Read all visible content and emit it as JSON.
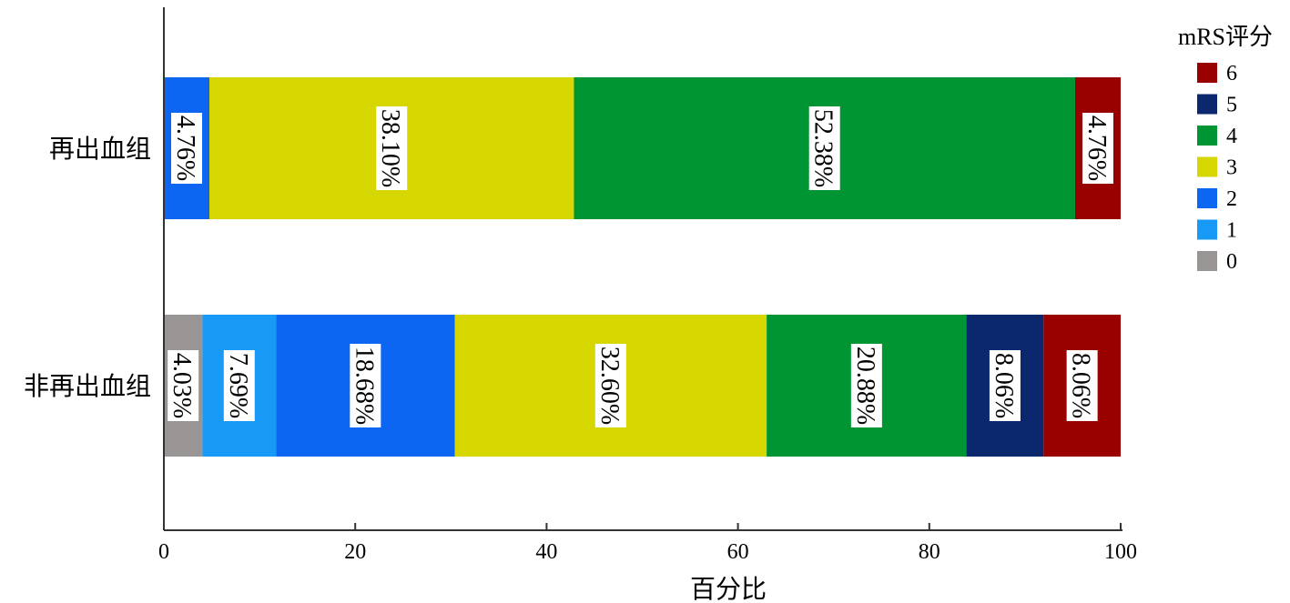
{
  "chart_data": {
    "type": "bar",
    "orientation": "horizontal",
    "stacked": true,
    "xlabel": "百分比",
    "xlim": [
      0,
      100
    ],
    "xticks": [
      0,
      20,
      40,
      60,
      80,
      100
    ],
    "categories": [
      "再出血组",
      "非再出血组"
    ],
    "legend": {
      "title": "mRS评分",
      "placement": "top-right",
      "order": [
        "6",
        "5",
        "4",
        "3",
        "2",
        "1",
        "0"
      ]
    },
    "series": [
      {
        "name": "0",
        "color": "#999594",
        "values": [
          0,
          4.03
        ],
        "labels": [
          "",
          "4.03%"
        ]
      },
      {
        "name": "1",
        "color": "#1799f5",
        "values": [
          0,
          7.69
        ],
        "labels": [
          "",
          "7.69%"
        ]
      },
      {
        "name": "2",
        "color": "#0d66f2",
        "values": [
          4.76,
          18.68
        ],
        "labels": [
          "4.76%",
          "18.68%"
        ]
      },
      {
        "name": "3",
        "color": "#d6d600",
        "values": [
          38.1,
          32.6
        ],
        "labels": [
          "38.10%",
          "32.60%"
        ]
      },
      {
        "name": "4",
        "color": "#009533",
        "values": [
          52.38,
          20.88
        ],
        "labels": [
          "52.38%",
          "20.88%"
        ]
      },
      {
        "name": "5",
        "color": "#0b286e",
        "values": [
          0,
          8.06
        ],
        "labels": [
          "",
          "8.06%"
        ]
      },
      {
        "name": "6",
        "color": "#990000",
        "values": [
          4.76,
          8.06
        ],
        "labels": [
          "4.76%",
          "8.06%"
        ]
      }
    ],
    "grid": false,
    "label_rotation_deg": 90
  }
}
